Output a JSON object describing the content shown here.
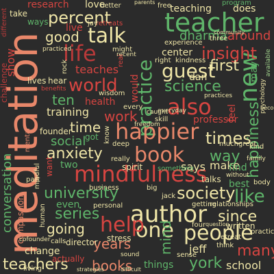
{
  "words": {
    "meditation": "meditation",
    "mindfulness": "mindfulness",
    "teacher": "teacher",
    "author": "author",
    "practice": "practice",
    "also": "also",
    "people": "people",
    "book": "book",
    "talk": "talk",
    "world": "world",
    "life": "life",
    "new": "new",
    "happier": "happier",
    "one": "one",
    "guest": "guest",
    "help": "help",
    "science": "science",
    "insight": "insight",
    "work": "work",
    "percent": "percent",
    "anxiety": "anxiety",
    "times": "times",
    "university": "university",
    "series": "series",
    "society": "society",
    "way": "way",
    "first": "first",
    "since": "since",
    "happiness": "happiness",
    "like": "like",
    "years": "years",
    "going": "going",
    "teachers": "teachers",
    "books": "books",
    "many": "many",
    "york": "york",
    "conversation": "conversation",
    "good": "good",
    "time": "time",
    "social": "social",
    "ten": "ten",
    "training": "training",
    "teaches": "teaches",
    "dharma": "dharma",
    "around": "around",
    "center": "center",
    "teaching": "teaching",
    "does": "does",
    "research": "research",
    "love": "love",
    "show": "show",
    "live": "live",
    "mind": "mind",
    "make": "make",
    "says": "says",
    "jeff": "jeff",
    "school": "school",
    "things": "things",
    "change": "change",
    "professor": "professor",
    "health": "health",
    "two": "two",
    "want": "want",
    "challenge": "challenge",
    "compassion": "compassion",
    "would": "would",
    "dan": "dan",
    "feel": "feel",
    "may": "may",
    "best": "best",
    "find": "find",
    "talks": "talks",
    "something": "something",
    "director": "director",
    "lives": "lives",
    "take": "take",
    "ways": "ways",
    "different": "different",
    "better": "better",
    "retreats": "retreats",
    "might": "might",
    "real": "real",
    "rock": "rock",
    "hear": "hear",
    "wisdom": "wisdom",
    "founder": "founder",
    "got": "got",
    "every": "every",
    "even": "even",
    "stress": "stress",
    "three": "three",
    "experience": "experience",
    "right": "right",
    "relationships": "relationships",
    "part": "part",
    "mental": "mental",
    "written": "written",
    "practical": "practical",
    "think": "think",
    "retreat": "retreat",
    "getting": "getting",
    "personal": "personal",
    "spirit": "spirit",
    "really": "really",
    "deep": "deep",
    "skill": "skill",
    "four": "four",
    "question": "question",
    "sense": "sense",
    "kind": "kind",
    "great": "great",
    "much": "much",
    "program": "program",
    "free": "free",
    "parents": "parents",
    "jay": "jay",
    "kindness": "kindness",
    "everyday": "everyday",
    "caught": "caught",
    "freedom": "freedom",
    "business": "business",
    "actually": "actually",
    "living": "living",
    "calls": "calls",
    "cofounder": "cofounder",
    "strategies": "strategies",
    "difficult": "difficult",
    "sound": "sound",
    "jack": "jack",
    "body": "body",
    "family": "family",
    "without": "without",
    "benefits": "benefits",
    "recent": "recent",
    "community": "community",
    "human": "human",
    "mindful": "mindful",
    "become": "become",
    "available": "available",
    "psychology": "psychology",
    "big": "big",
    "practiced": "practiced",
    "practices": "practices",
    "know": "know"
  }
}
